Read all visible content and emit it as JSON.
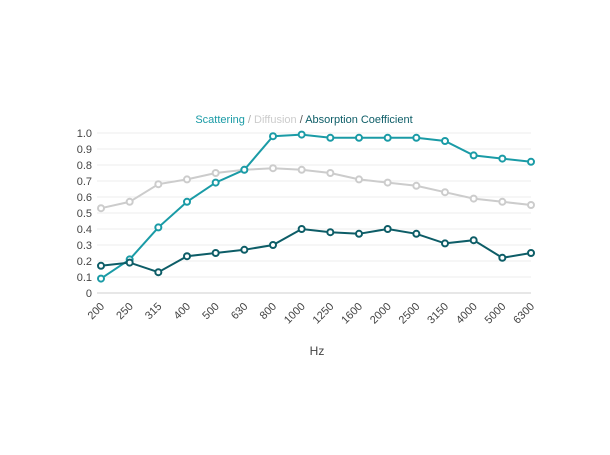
{
  "chart_data": {
    "type": "line",
    "title_parts": [
      {
        "text": "Scattering",
        "color": "#1a9ba6"
      },
      {
        "text": " / ",
        "color": "#aaaaaa"
      },
      {
        "text": "Diffusion",
        "color": "#cccccc"
      },
      {
        "text": " / ",
        "color": "#555555"
      },
      {
        "text": "Absorption Coefficient",
        "color": "#0d5d67"
      }
    ],
    "xlabel": "Hz",
    "ylabel": "",
    "ylim": [
      0,
      1.0
    ],
    "yticks": [
      "0",
      "0.1",
      "0.2",
      "0.3",
      "0.4",
      "0.5",
      "0.6",
      "0.7",
      "0.8",
      "0.9",
      "1.0"
    ],
    "categories": [
      "200",
      "250",
      "315",
      "400",
      "500",
      "630",
      "800",
      "1000",
      "1250",
      "1600",
      "2000",
      "2500",
      "3150",
      "4000",
      "5000",
      "6300"
    ],
    "grid": true,
    "legend": "none",
    "series": [
      {
        "name": "Diffusion",
        "color": "#cccccc",
        "values": [
          0.53,
          0.57,
          0.68,
          0.71,
          0.75,
          0.77,
          0.78,
          0.77,
          0.75,
          0.71,
          0.69,
          0.67,
          0.63,
          0.59,
          0.57,
          0.55
        ]
      },
      {
        "name": "Scattering",
        "color": "#1a9ba6",
        "values": [
          0.09,
          0.21,
          0.41,
          0.57,
          0.69,
          0.77,
          0.98,
          0.99,
          0.97,
          0.97,
          0.97,
          0.97,
          0.95,
          0.86,
          0.84,
          0.82
        ]
      },
      {
        "name": "Absorption Coefficient",
        "color": "#0d5d67",
        "values": [
          0.17,
          0.19,
          0.13,
          0.23,
          0.25,
          0.27,
          0.3,
          0.4,
          0.38,
          0.37,
          0.4,
          0.37,
          0.31,
          0.33,
          0.22,
          0.25
        ]
      }
    ]
  }
}
